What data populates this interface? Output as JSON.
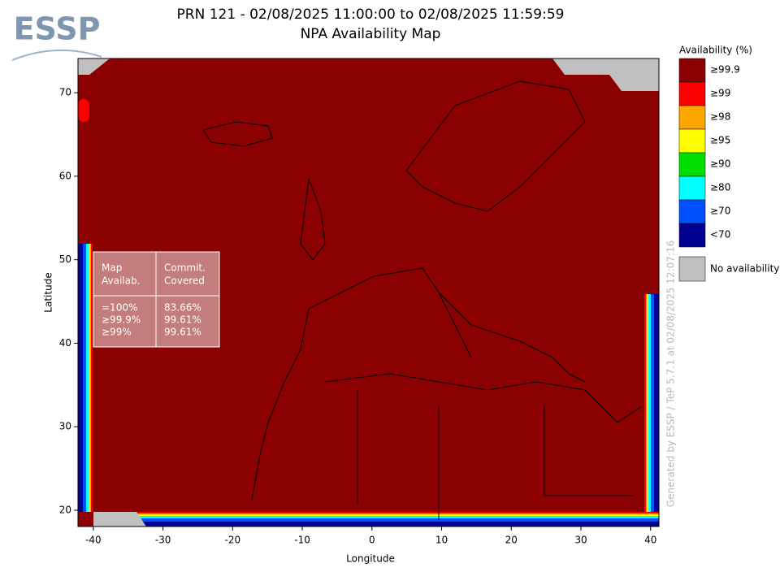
{
  "logo": "ESSP",
  "header": {
    "title_line1": "PRN 121 - 02/08/2025 11:00:00 to 02/08/2025 11:59:59",
    "title_line2": "NPA Availability Map"
  },
  "map": {
    "xlabel": "Longitude",
    "ylabel": "Latitude",
    "xlim": [
      -42.2,
      41.2
    ],
    "ylim": [
      18.05,
      74.1
    ],
    "xticks": [
      -40,
      -30,
      -20,
      -10,
      0,
      10,
      20,
      30,
      40
    ],
    "yticks": [
      20,
      30,
      40,
      50,
      60,
      70
    ]
  },
  "legend": {
    "title": "Availability (%)",
    "items": [
      {
        "label": "≥99.9",
        "color": "#8b0000"
      },
      {
        "label": "≥99",
        "color": "#ff0000"
      },
      {
        "label": "≥98",
        "color": "#ffa500"
      },
      {
        "label": "≥95",
        "color": "#ffff00"
      },
      {
        "label": "≥90",
        "color": "#00e000"
      },
      {
        "label": "≥80",
        "color": "#00ffff"
      },
      {
        "label": "≥70",
        "color": "#0050ff"
      },
      {
        "label": "<70",
        "color": "#000090"
      }
    ],
    "no_availability": {
      "label": "No availability",
      "color": "#c0c0c0"
    }
  },
  "table": {
    "headers": [
      [
        "Map",
        "Availab."
      ],
      [
        "Commit.",
        "Covered"
      ]
    ],
    "rows": [
      [
        "=100%",
        "83.66%"
      ],
      [
        "≥99.9%",
        "99.61%"
      ],
      [
        "≥99%",
        "99.61%"
      ]
    ]
  },
  "credit": "Generated by ESSP / TeP 5.7.1 at 02/08/2025 12:07:16"
}
